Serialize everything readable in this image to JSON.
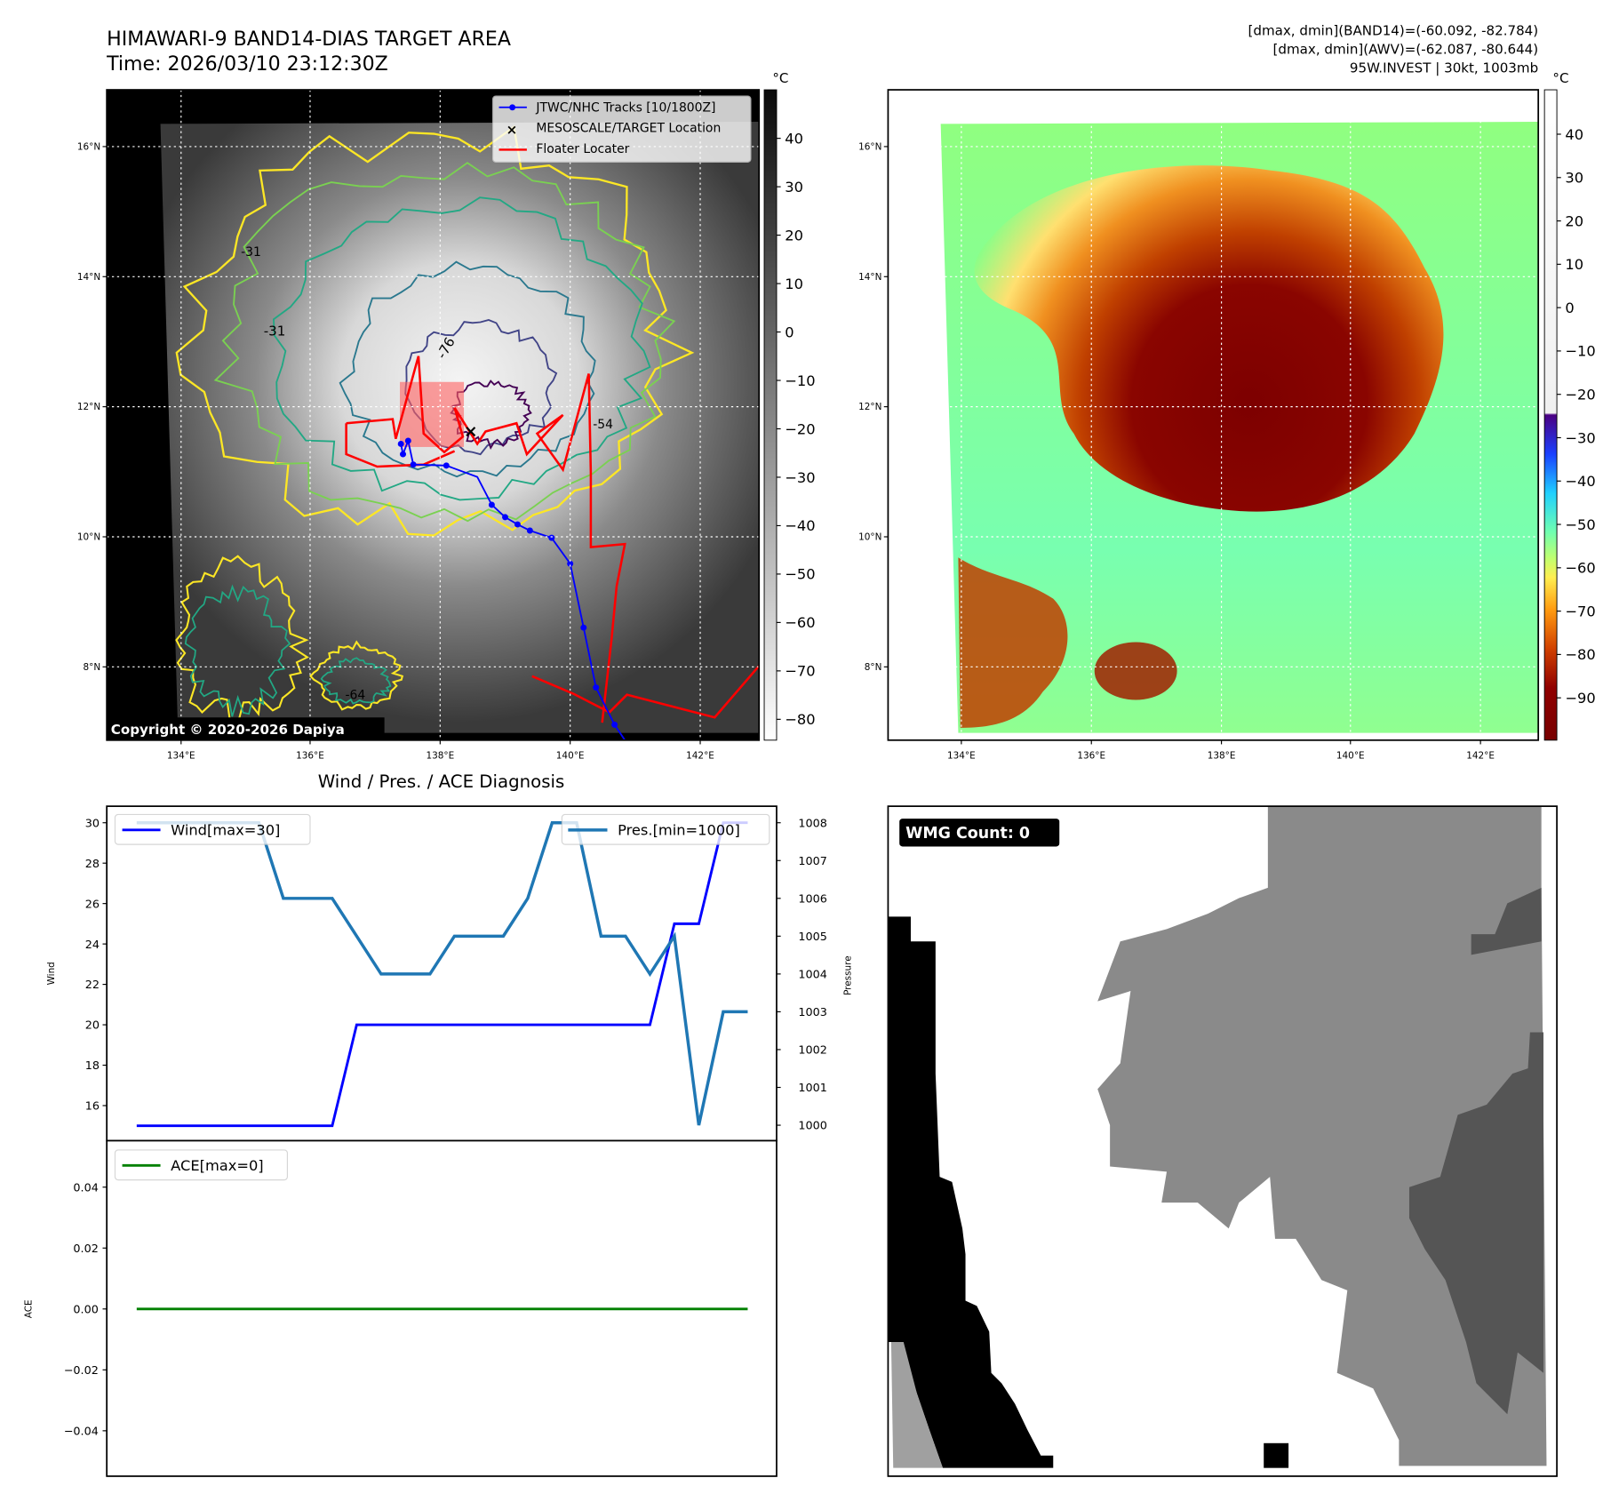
{
  "header": {
    "title": "HIMAWARI-9 BAND14-DIAS TARGET AREA",
    "time": "Time: 2026/03/10 23:12:30Z",
    "stats_band14": "[dmax, dmin](BAND14)=(-60.092, -82.784)",
    "stats_awv": "[dmax, dmin](AWV)=(-62.087, -80.644)",
    "storm_info": "95W.INVEST | 30kt, 1003mb"
  },
  "maps": {
    "lon_labels": [
      "134°E",
      "136°E",
      "138°E",
      "140°E",
      "142°E"
    ],
    "lat_labels": [
      "16°N",
      "14°N",
      "12°N",
      "10°N",
      "8°N"
    ],
    "unit": "°C",
    "left_colorbar_ticks": [
      "40",
      "30",
      "20",
      "10",
      "0",
      "−10",
      "−20",
      "−30",
      "−40",
      "−50",
      "−60",
      "−70",
      "−80"
    ],
    "right_colorbar_ticks": [
      "40",
      "30",
      "20",
      "10",
      "0",
      "−10",
      "−20",
      "−30",
      "−40",
      "−50",
      "−60",
      "−70",
      "−80",
      "−90"
    ],
    "legend": {
      "tracks": "JTWC/NHC Tracks [10/1800Z]",
      "target": "MESOSCALE/TARGET Location",
      "floater": "Floater Locater"
    },
    "contour_labels": [
      "-31",
      "-76",
      "-54",
      "-31",
      "-64"
    ],
    "copyright": "Copyright © 2020-2026 Dapiya",
    "colors": {
      "track": "#0000ff",
      "floater": "#ff0000",
      "target": "#ff0000"
    }
  },
  "wmg": {
    "label": "WMG Count: 0"
  },
  "chart_data": [
    {
      "type": "line",
      "title": "Wind / Pres. / ACE Diagnosis",
      "ylabel": "Wind",
      "ylabel_right": "Pressure",
      "ylim": [
        14.5,
        30.7
      ],
      "ylim_right": [
        999.5,
        1008.4
      ],
      "yticks": [
        16,
        18,
        20,
        22,
        24,
        26,
        28,
        30
      ],
      "yticks_right": [
        1000,
        1001,
        1002,
        1003,
        1004,
        1005,
        1006,
        1007,
        1008
      ],
      "x": [
        0,
        1,
        2,
        3,
        4,
        5,
        6,
        7,
        8,
        9,
        10,
        11,
        12,
        13,
        14,
        15,
        16,
        17,
        18,
        19,
        20,
        21,
        22,
        23,
        24,
        25
      ],
      "series": [
        {
          "name": "Wind[max=30]",
          "color": "#0000ff",
          "axis": "left",
          "values": [
            15,
            15,
            15,
            15,
            15,
            15,
            15,
            15,
            15,
            20,
            20,
            20,
            20,
            20,
            20,
            20,
            20,
            20,
            20,
            20,
            20,
            20,
            25,
            25,
            30,
            30
          ]
        },
        {
          "name": "Pres.[min=1000]",
          "color": "#1f77b4",
          "axis": "right",
          "values": [
            1008,
            1008,
            1008,
            1008,
            1008,
            1008,
            1006,
            1006,
            1006,
            1005,
            1004,
            1004,
            1004,
            1005,
            1005,
            1005,
            1006,
            1008,
            1008,
            1005,
            1005,
            1004,
            1005,
            1000,
            1003,
            1003
          ]
        }
      ]
    },
    {
      "type": "line",
      "ylabel": "ACE",
      "ylim": [
        -0.055,
        0.055
      ],
      "yticks": [
        "0.04",
        "0.02",
        "0.00",
        "−0.02",
        "−0.04"
      ],
      "ytick_values": [
        0.04,
        0.02,
        0,
        -0.02,
        -0.04
      ],
      "x": [
        0,
        1,
        2,
        3,
        4,
        5,
        6,
        7,
        8,
        9,
        10,
        11,
        12,
        13,
        14,
        15,
        16,
        17,
        18,
        19,
        20,
        21,
        22,
        23,
        24,
        25
      ],
      "series": [
        {
          "name": "ACE[max=0]",
          "color": "#008000",
          "values": [
            0,
            0,
            0,
            0,
            0,
            0,
            0,
            0,
            0,
            0,
            0,
            0,
            0,
            0,
            0,
            0,
            0,
            0,
            0,
            0,
            0,
            0,
            0,
            0,
            0,
            0
          ]
        }
      ]
    }
  ]
}
